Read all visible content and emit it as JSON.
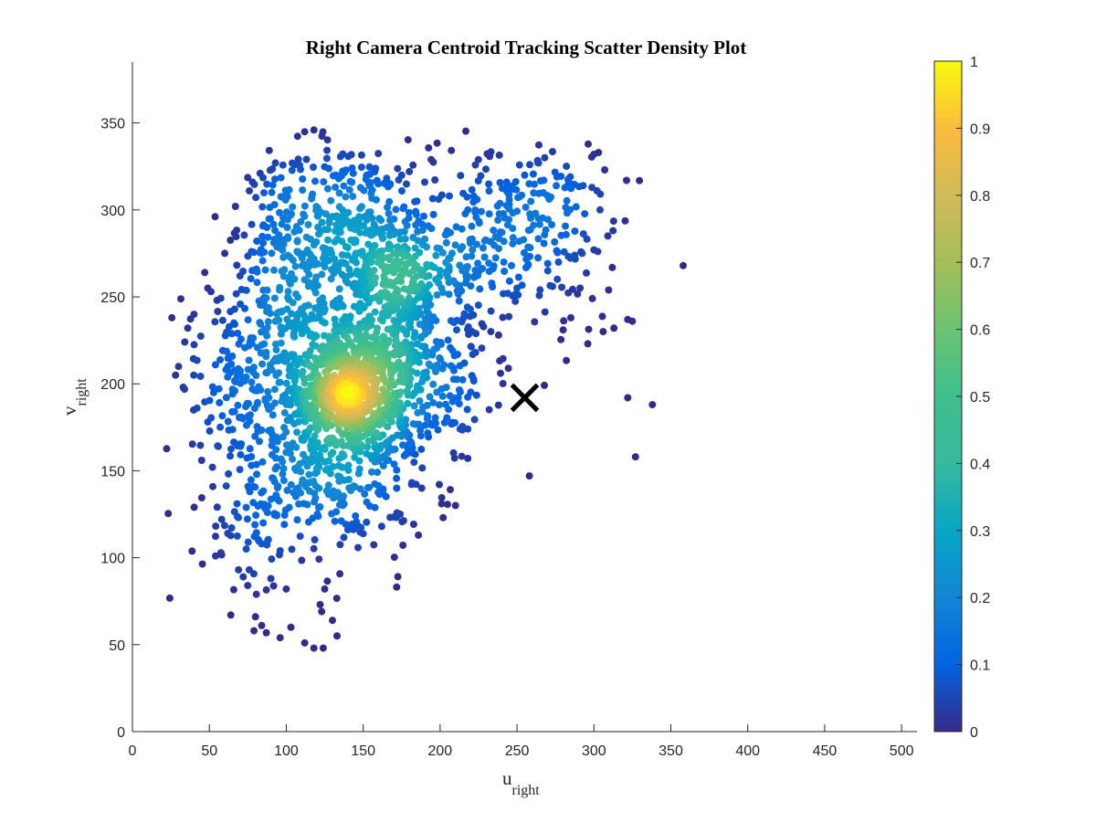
{
  "chart_data": {
    "type": "scatter",
    "title": "Right Camera Centroid Tracking Scatter Density Plot",
    "xlabel": {
      "main": "u",
      "sub": "right"
    },
    "ylabel": {
      "main": "v",
      "sub": "right"
    },
    "xlim": [
      0,
      510
    ],
    "ylim": [
      0,
      385
    ],
    "x_ticks": [
      0,
      50,
      100,
      150,
      200,
      250,
      300,
      350,
      400,
      450,
      500
    ],
    "y_ticks": [
      0,
      50,
      100,
      150,
      200,
      250,
      300,
      350
    ],
    "colorbar": {
      "colormap": "parula",
      "range": [
        0,
        1
      ],
      "ticks": [
        0,
        0.1,
        0.2,
        0.3,
        0.4,
        0.5,
        0.6,
        0.7,
        0.8,
        0.9,
        1
      ]
    },
    "grid": false,
    "marker_annotation": {
      "symbol": "x",
      "x": 255,
      "y": 192,
      "color": "#000000"
    },
    "density_clusters": [
      {
        "x": 150,
        "y": 192,
        "sx": 18,
        "sy": 18,
        "w": 1.0
      },
      {
        "x": 134,
        "y": 194,
        "sx": 13,
        "sy": 13,
        "w": 0.8
      },
      {
        "x": 165,
        "y": 218,
        "sx": 22,
        "sy": 22,
        "w": 0.6
      },
      {
        "x": 170,
        "y": 262,
        "sx": 14,
        "sy": 14,
        "w": 0.5
      },
      {
        "x": 140,
        "y": 290,
        "sx": 24,
        "sy": 22,
        "w": 0.45
      },
      {
        "x": 190,
        "y": 265,
        "sx": 20,
        "sy": 15,
        "w": 0.35
      },
      {
        "x": 120,
        "y": 215,
        "sx": 22,
        "sy": 38,
        "w": 0.42
      },
      {
        "x": 130,
        "y": 150,
        "sx": 28,
        "sy": 22,
        "w": 0.35
      },
      {
        "x": 240,
        "y": 285,
        "sx": 32,
        "sy": 24,
        "w": 0.25
      },
      {
        "x": 95,
        "y": 260,
        "sx": 14,
        "sy": 30,
        "w": 0.2
      },
      {
        "x": 70,
        "y": 200,
        "sx": 22,
        "sy": 28,
        "w": 0.18
      },
      {
        "x": 80,
        "y": 120,
        "sx": 16,
        "sy": 22,
        "w": 0.12
      },
      {
        "x": 205,
        "y": 195,
        "sx": 18,
        "sy": 20,
        "w": 0.16
      },
      {
        "x": 275,
        "y": 305,
        "sx": 18,
        "sy": 14,
        "w": 0.15
      },
      {
        "x": 100,
        "y": 310,
        "sx": 12,
        "sy": 10,
        "w": 0.12
      }
    ],
    "outlier_points": [
      [
        358,
        268
      ],
      [
        322,
        237
      ],
      [
        325,
        236
      ],
      [
        322,
        192
      ],
      [
        338,
        188
      ],
      [
        327,
        158
      ],
      [
        258,
        147
      ],
      [
        303,
        333
      ],
      [
        300,
        332
      ],
      [
        307,
        323
      ],
      [
        293,
        314
      ],
      [
        302,
        311
      ],
      [
        304,
        300
      ],
      [
        309,
        285
      ],
      [
        300,
        277
      ],
      [
        291,
        255
      ],
      [
        299,
        249
      ],
      [
        285,
        238
      ],
      [
        280,
        231
      ],
      [
        306,
        230
      ],
      [
        296,
        223
      ],
      [
        313,
        232
      ],
      [
        238,
        228
      ],
      [
        218,
        174
      ],
      [
        213,
        174
      ],
      [
        210,
        130
      ],
      [
        202,
        123
      ],
      [
        201,
        131
      ],
      [
        188,
        140
      ],
      [
        174,
        125
      ],
      [
        162,
        118
      ],
      [
        147,
        118
      ],
      [
        145,
        124
      ],
      [
        130,
        64
      ],
      [
        133,
        55
      ],
      [
        124,
        48
      ],
      [
        118,
        48
      ],
      [
        112,
        51
      ],
      [
        96,
        54
      ],
      [
        103,
        60
      ],
      [
        84,
        61
      ],
      [
        79,
        58
      ],
      [
        80,
        66
      ],
      [
        90,
        88
      ],
      [
        100,
        82
      ],
      [
        125,
        82
      ],
      [
        122,
        73
      ],
      [
        123,
        69
      ],
      [
        96,
        104
      ],
      [
        88,
        110
      ],
      [
        85,
        120
      ],
      [
        75,
        84
      ],
      [
        72,
        89
      ],
      [
        69,
        93
      ],
      [
        118,
        346
      ],
      [
        112,
        345
      ],
      [
        93,
        327
      ],
      [
        90,
        323
      ],
      [
        83,
        321
      ],
      [
        78,
        316
      ],
      [
        76,
        311
      ],
      [
        67,
        302
      ],
      [
        60,
        275
      ],
      [
        55,
        248
      ],
      [
        49,
        255
      ],
      [
        47,
        264
      ],
      [
        40,
        240
      ],
      [
        36,
        232
      ],
      [
        34,
        224
      ],
      [
        30,
        210
      ],
      [
        28,
        205
      ],
      [
        33,
        198
      ],
      [
        42,
        186
      ],
      [
        49,
        178
      ],
      [
        45,
        156
      ],
      [
        52,
        152
      ],
      [
        58,
        122
      ],
      [
        62,
        114
      ],
      [
        54,
        101
      ],
      [
        74,
        105
      ],
      [
        84,
        108
      ],
      [
        68,
        131
      ],
      [
        94,
        134
      ],
      [
        180,
        322
      ],
      [
        175,
        320
      ],
      [
        190,
        316
      ],
      [
        206,
        308
      ],
      [
        218,
        300
      ],
      [
        224,
        306
      ],
      [
        247,
        312
      ],
      [
        255,
        320
      ],
      [
        264,
        327
      ],
      [
        268,
        330
      ],
      [
        276,
        319
      ],
      [
        262,
        298
      ],
      [
        250,
        255
      ],
      [
        265,
        254
      ],
      [
        270,
        265
      ],
      [
        257,
        268
      ],
      [
        244,
        252
      ],
      [
        233,
        230
      ],
      [
        223,
        218
      ]
    ]
  }
}
